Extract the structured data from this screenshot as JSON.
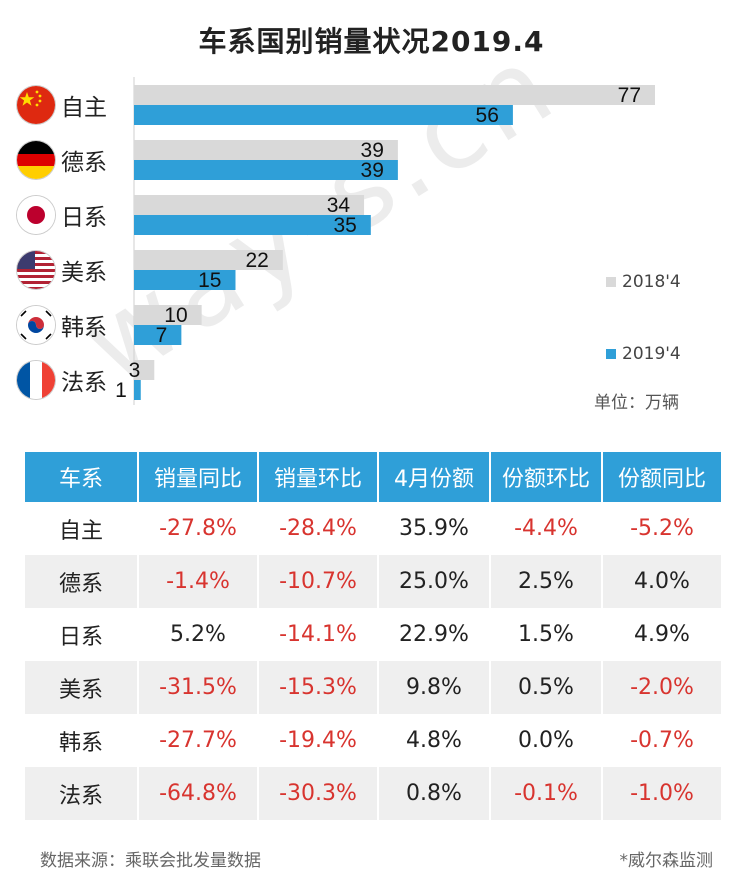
{
  "title": "车系国别销量状况2019.4",
  "chart_data": {
    "type": "bar",
    "orientation": "horizontal",
    "categories": [
      "自主",
      "德系",
      "日系",
      "美系",
      "韩系",
      "法系"
    ],
    "series": [
      {
        "name": "2018'4",
        "color": "#d9d9d9",
        "values": [
          77,
          39,
          34,
          22,
          10,
          3
        ]
      },
      {
        "name": "2019'4",
        "color": "#2f9fd8",
        "values": [
          56,
          39,
          35,
          15,
          7,
          1
        ]
      }
    ],
    "xlim": [
      0,
      80
    ],
    "unit_label": "单位：万辆",
    "legend_position": "right"
  },
  "flags": [
    "china-flag-icon",
    "germany-flag-icon",
    "japan-flag-icon",
    "usa-flag-icon",
    "korea-flag-icon",
    "france-flag-icon"
  ],
  "table": {
    "headers": [
      "车系",
      "销量同比",
      "销量环比",
      "4月份额",
      "份额环比",
      "份额同比"
    ],
    "rows": [
      [
        "自主",
        "-27.8%",
        "-28.4%",
        "35.9%",
        "-4.4%",
        "-5.2%"
      ],
      [
        "德系",
        "-1.4%",
        "-10.7%",
        "25.0%",
        "2.5%",
        "4.0%"
      ],
      [
        "日系",
        "5.2%",
        "-14.1%",
        "22.9%",
        "1.5%",
        "4.9%"
      ],
      [
        "美系",
        "-31.5%",
        "-15.3%",
        "9.8%",
        "0.5%",
        "-2.0%"
      ],
      [
        "韩系",
        "-27.7%",
        "-19.4%",
        "4.8%",
        "0.0%",
        "-0.7%"
      ],
      [
        "法系",
        "-64.8%",
        "-30.3%",
        "0.8%",
        "-0.1%",
        "-1.0%"
      ]
    ]
  },
  "footer": {
    "source": "数据来源：乘联会批发量数据",
    "credit": "*威尔森监测"
  },
  "watermark": "way-s.cn",
  "colors": {
    "header_bg": "#2f9fd8",
    "negative": "#d8342f",
    "bar_2018": "#d9d9d9",
    "bar_2019": "#2f9fd8"
  }
}
